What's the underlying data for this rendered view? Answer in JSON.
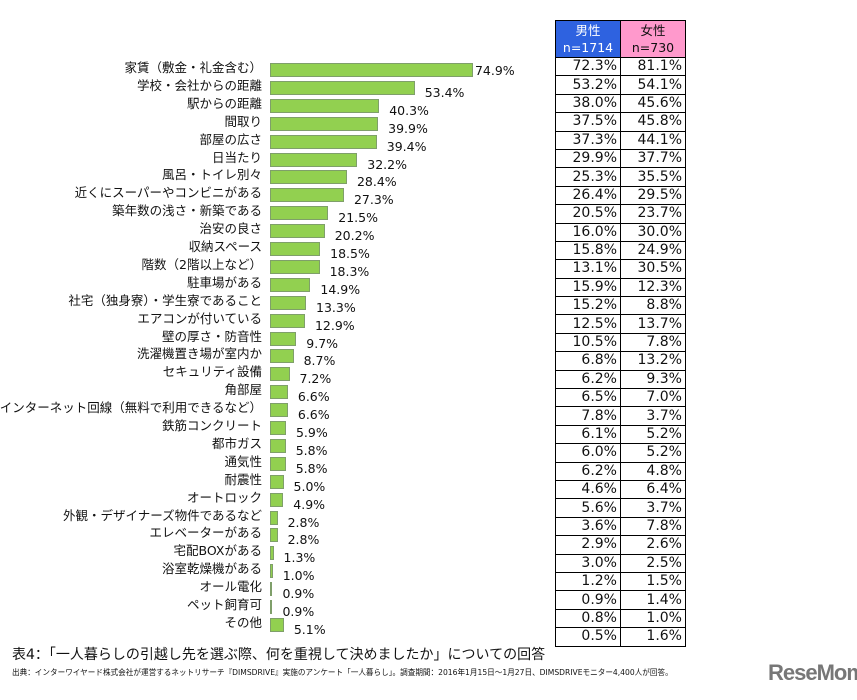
{
  "chart_data": {
    "type": "bar",
    "orientation": "horizontal",
    "title": "表4：「一人暮らしの引越し先を選ぶ際、何を重視して決めましたか」についての回答",
    "source": "出典：インターワイヤード株式会社が運営するネットリサーチ『DIMSDRIVE』実施のアンケート「一人暮らし」。調査期間：2016年1月15日～1月27日、DIMSDRIVEモニター4,400人が回答。",
    "categories": [
      "家賃（敷金・礼金含む）",
      "学校・会社からの距離",
      "駅からの距離",
      "間取り",
      "部屋の広さ",
      "日当たり",
      "風呂・トイレ別々",
      "近くにスーパーやコンビニがある",
      "築年数の浅さ・新築である",
      "治安の良さ",
      "収納スペース",
      "階数（2階以上など）",
      "駐車場がある",
      "社宅（独身寮）・学生寮であること",
      "エアコンが付いている",
      "壁の厚さ・防音性",
      "洗濯機置き場が室内か",
      "セキュリティ設備",
      "角部屋",
      "インターネット回線（無料で利用できるなど）",
      "鉄筋コンクリート",
      "都市ガス",
      "通気性",
      "耐震性",
      "オートロック",
      "外観・デザイナーズ物件であるなど",
      "エレベーターがある",
      "宅配BOXがある",
      "浴室乾燥機がある",
      "オール電化",
      "ペット飼育可",
      "その他"
    ],
    "values": [
      74.9,
      53.4,
      40.3,
      39.9,
      39.4,
      32.2,
      28.4,
      27.3,
      21.5,
      20.2,
      18.5,
      18.3,
      14.9,
      13.3,
      12.9,
      9.7,
      8.7,
      7.2,
      6.6,
      6.6,
      5.9,
      5.8,
      5.8,
      5.0,
      4.9,
      2.8,
      2.8,
      1.3,
      1.0,
      0.9,
      0.9,
      5.1
    ],
    "unit": "%",
    "bar_color": "#92d050",
    "table": {
      "headers": [
        {
          "label": "男性",
          "n": "n=1714",
          "color": "#2e62e0"
        },
        {
          "label": "女性",
          "n": "n=730",
          "color": "#ff99cc"
        }
      ],
      "male": [
        "72.3%",
        "53.2%",
        "38.0%",
        "37.5%",
        "37.3%",
        "29.9%",
        "25.3%",
        "26.4%",
        "20.5%",
        "16.0%",
        "15.8%",
        "13.1%",
        "15.9%",
        "15.2%",
        "12.5%",
        "10.5%",
        "6.8%",
        "6.2%",
        "6.5%",
        "7.8%",
        "6.1%",
        "6.0%",
        "6.2%",
        "4.6%",
        "5.6%",
        "3.6%",
        "2.9%",
        "3.0%",
        "1.2%",
        "0.9%",
        "0.8%",
        "0.5%"
      ],
      "female": [
        "81.1%",
        "54.1%",
        "45.6%",
        "45.8%",
        "44.1%",
        "37.7%",
        "35.5%",
        "29.5%",
        "23.7%",
        "30.0%",
        "24.9%",
        "30.5%",
        "12.3%",
        "8.8%",
        "13.7%",
        "7.8%",
        "13.2%",
        "9.3%",
        "7.0%",
        "3.7%",
        "5.2%",
        "5.2%",
        "4.8%",
        "6.4%",
        "3.7%",
        "7.8%",
        "2.6%",
        "2.5%",
        "1.5%",
        "1.4%",
        "1.0%",
        "1.6%"
      ]
    }
  },
  "logo": "ReseMom"
}
